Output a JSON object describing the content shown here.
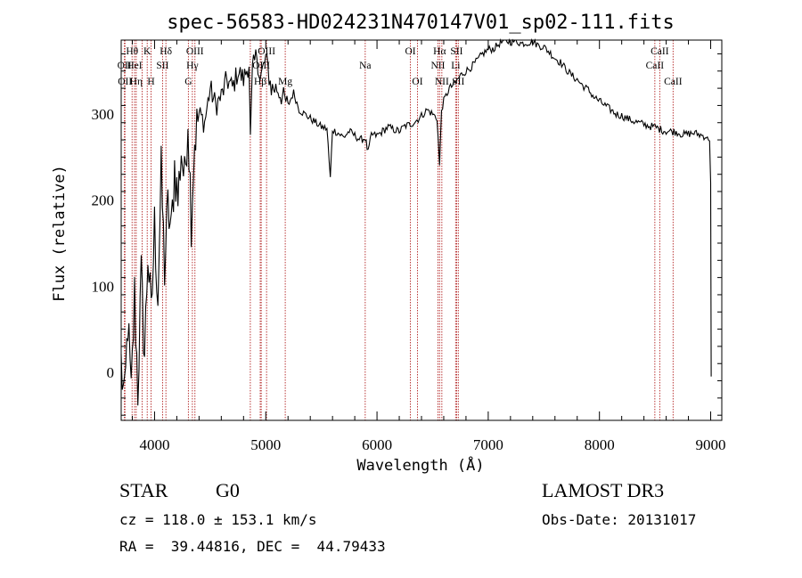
{
  "chart_data": {
    "type": "line",
    "title": "spec-56583-HD024231N470147V01_sp02-111.fits",
    "xlabel": "Wavelength (Å)",
    "ylabel": "Flux (relative)",
    "xlim": [
      3700,
      9100
    ],
    "ylim": [
      -56,
      386
    ],
    "x_ticks": [
      4000,
      5000,
      6000,
      7000,
      8000,
      9000
    ],
    "x_tick_labels": [
      "4000",
      "5000",
      "6000",
      "7000",
      "8000",
      "9000"
    ],
    "y_ticks": [
      0,
      100,
      200,
      300
    ],
    "y_tick_labels": [
      "0",
      "100",
      "200",
      "300"
    ],
    "grid": false,
    "series": [
      {
        "color": "#000000",
        "x": [
          3700,
          3730,
          3760,
          3790,
          3820,
          3850,
          3880,
          3910,
          3940,
          3970,
          4000,
          4030,
          4060,
          4090,
          4120,
          4150,
          4180,
          4210,
          4240,
          4270,
          4300,
          4330,
          4360,
          4400,
          4450,
          4500,
          4550,
          4600,
          4650,
          4700,
          4750,
          4800,
          4850,
          4862,
          4880,
          4920,
          4950,
          5000,
          5050,
          5100,
          5150,
          5200,
          5250,
          5300,
          5350,
          5400,
          5450,
          5500,
          5550,
          5580,
          5600,
          5650,
          5700,
          5750,
          5800,
          5850,
          5895,
          5920,
          5950,
          6000,
          6050,
          6100,
          6150,
          6200,
          6250,
          6300,
          6350,
          6400,
          6450,
          6500,
          6540,
          6563,
          6580,
          6600,
          6650,
          6700,
          6750,
          6800,
          6850,
          6900,
          6950,
          7000,
          7050,
          7100,
          7150,
          7200,
          7250,
          7300,
          7350,
          7400,
          7450,
          7500,
          7550,
          7600,
          7650,
          7700,
          7750,
          7800,
          7850,
          7900,
          7950,
          8000,
          8050,
          8100,
          8150,
          8200,
          8250,
          8300,
          8350,
          8400,
          8450,
          8500,
          8550,
          8600,
          8650,
          8700,
          8750,
          8800,
          8850,
          8900,
          8950,
          8990,
          9000,
          9005
        ],
        "y": [
          10,
          -40,
          60,
          -30,
          90,
          -20,
          110,
          20,
          140,
          60,
          170,
          90,
          230,
          120,
          190,
          160,
          240,
          200,
          260,
          220,
          300,
          180,
          270,
          300,
          290,
          330,
          310,
          320,
          340,
          330,
          350,
          340,
          360,
          270,
          350,
          370,
          340,
          365,
          330,
          330,
          320,
          310,
          325,
          305,
          300,
          295,
          290,
          285,
          283,
          225,
          282,
          278,
          273,
          280,
          275,
          270,
          272,
          255,
          276,
          275,
          280,
          285,
          282,
          280,
          286,
          288,
          292,
          298,
          305,
          300,
          295,
          240,
          305,
          315,
          330,
          335,
          345,
          350,
          355,
          362,
          370,
          375,
          376,
          382,
          385,
          384,
          385,
          382,
          383,
          384,
          380,
          378,
          372,
          365,
          360,
          352,
          345,
          340,
          333,
          328,
          320,
          315,
          310,
          305,
          300,
          298,
          295,
          292,
          290,
          288,
          286,
          285,
          282,
          280,
          280,
          279,
          276,
          277,
          278,
          276,
          274,
          270,
          220,
          -5
        ]
      }
    ],
    "line_markers": [
      {
        "x": 3729,
        "label": "OII",
        "row": 2
      },
      {
        "x": 3734,
        "label": "OII",
        "row": 3
      },
      {
        "x": 3798,
        "label": "Hθ",
        "row": 1
      },
      {
        "x": 3820,
        "label": "HeI",
        "row": 2
      },
      {
        "x": 3835,
        "label": "Hη",
        "row": 3
      },
      {
        "x": 3889,
        "label": "",
        "row": 0
      },
      {
        "x": 3934,
        "label": "K",
        "row": 1
      },
      {
        "x": 3969,
        "label": "H",
        "row": 3
      },
      {
        "x": 4072,
        "label": "SII",
        "row": 2
      },
      {
        "x": 4102,
        "label": "Hδ",
        "row": 1
      },
      {
        "x": 4304,
        "label": "G",
        "row": 3
      },
      {
        "x": 4340,
        "label": "Hγ",
        "row": 2
      },
      {
        "x": 4363,
        "label": "OIII",
        "row": 1
      },
      {
        "x": 4861,
        "label": "",
        "row": 0
      },
      {
        "x": 4959,
        "label": "OIII",
        "row": 2
      },
      {
        "x": 4950,
        "label": "Hβ",
        "row": 3
      },
      {
        "x": 5007,
        "label": "OIII",
        "row": 1
      },
      {
        "x": 5175,
        "label": "Mg",
        "row": 3
      },
      {
        "x": 5894,
        "label": "Na",
        "row": 2
      },
      {
        "x": 6300,
        "label": "OI",
        "row": 1
      },
      {
        "x": 6364,
        "label": "OI",
        "row": 3
      },
      {
        "x": 6548,
        "label": "NII",
        "row": 2
      },
      {
        "x": 6563,
        "label": "Hα",
        "row": 1
      },
      {
        "x": 6583,
        "label": "NII",
        "row": 3
      },
      {
        "x": 6707,
        "label": "Li",
        "row": 2
      },
      {
        "x": 6716,
        "label": "SII",
        "row": 1
      },
      {
        "x": 6731,
        "label": "SII",
        "row": 3
      },
      {
        "x": 8498,
        "label": "CaII",
        "row": 2
      },
      {
        "x": 8542,
        "label": "CaII",
        "row": 1
      },
      {
        "x": 8662,
        "label": "CaII",
        "row": 3
      }
    ]
  },
  "info": {
    "object_class": "STAR",
    "subclass": "G0",
    "survey": "LAMOST DR3",
    "cz": "cz = 118.0 ± 153.1 km/s",
    "obs_date": "Obs-Date: 20131017",
    "coords": "RA =  39.44816, DEC =  44.79433"
  }
}
